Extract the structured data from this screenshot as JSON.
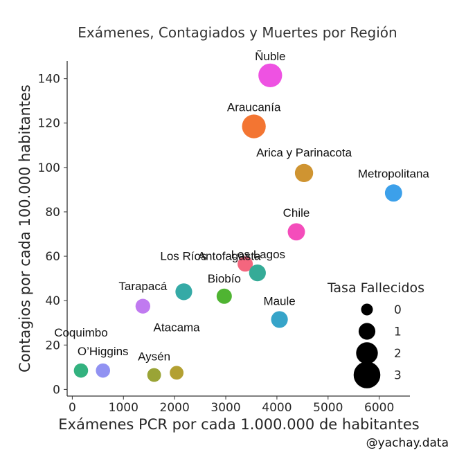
{
  "chart_data": {
    "type": "scatter",
    "title": "Exámenes, Contagiados y Muertes por Región",
    "xlabel": "Exámenes PCR por cada 1.000.000 de habitantes",
    "ylabel": "Contagios por cada 100.000 habitantes",
    "xlim": [
      -100,
      6600
    ],
    "ylim": [
      -3,
      148
    ],
    "xticks": [
      0,
      1000,
      2000,
      3000,
      4000,
      5000,
      6000
    ],
    "yticks": [
      0,
      20,
      40,
      60,
      80,
      100,
      120,
      140
    ],
    "grid": false,
    "points": [
      {
        "label": "Ñuble",
        "x": 3870,
        "y": 141.5,
        "fallecidos": 2.4,
        "color": "#ee52e2"
      },
      {
        "label": "Araucanía",
        "x": 3550,
        "y": 118.5,
        "fallecidos": 2.4,
        "color": "#f37532"
      },
      {
        "label": "Arica y Parinacota",
        "x": 4530,
        "y": 97.5,
        "fallecidos": 1.3,
        "color": "#cf9431"
      },
      {
        "label": "Metropolitana",
        "x": 6280,
        "y": 88.5,
        "fallecidos": 1.1,
        "color": "#3ca0ea"
      },
      {
        "label": "Chile",
        "x": 4380,
        "y": 71,
        "fallecidos": 1.1,
        "color": "#f44dbb"
      },
      {
        "label": "Antofagasta",
        "x": 3380,
        "y": 56.5,
        "fallecidos": 0.7,
        "color": "#f4667e"
      },
      {
        "label": "Los Lagos",
        "x": 3620,
        "y": 52.5,
        "fallecidos": 1.0,
        "color": "#35ab97"
      },
      {
        "label": "Los Ríos",
        "x": 2180,
        "y": 44,
        "fallecidos": 1.0,
        "color": "#35aaa6"
      },
      {
        "label": "Biobío",
        "x": 2970,
        "y": 42,
        "fallecidos": 0.7,
        "color": "#4fb432"
      },
      {
        "label": "Tarapacá",
        "x": 1380,
        "y": 37.5,
        "fallecidos": 0.6,
        "color": "#c07af0"
      },
      {
        "label": "Maule",
        "x": 4050,
        "y": 31.5,
        "fallecidos": 1.0,
        "color": "#36a4c9"
      },
      {
        "label": "Coquimbo",
        "x": 170,
        "y": 8.5,
        "fallecidos": 0.5,
        "color": "#33b27f"
      },
      {
        "label": "O’Higgins",
        "x": 600,
        "y": 8.5,
        "fallecidos": 0.5,
        "color": "#9192f2"
      },
      {
        "label": "Aysén",
        "x": 1600,
        "y": 6.5,
        "fallecidos": 0.4,
        "color": "#9aa436"
      },
      {
        "label": "Atacama",
        "x": 2040,
        "y": 7.5,
        "fallecidos": 0.4,
        "color": "#b3a032"
      }
    ],
    "legend": {
      "title": "Tasa Fallecidos",
      "position": "lower-right",
      "entries": [
        {
          "label": "0",
          "value": 0
        },
        {
          "label": "1",
          "value": 1
        },
        {
          "label": "2",
          "value": 2
        },
        {
          "label": "3",
          "value": 3
        }
      ],
      "color": "#000000"
    }
  },
  "credit": "@yachay.data"
}
